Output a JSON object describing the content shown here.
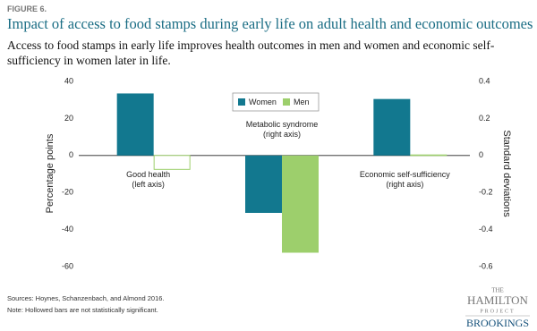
{
  "figure_label": "FIGURE 6.",
  "chart_data": {
    "type": "bar",
    "title": "Impact of access to food stamps during early life on adult health and economic outcomes",
    "subtitle": "Access to food stamps in early life improves health outcomes in men and women and economic self-sufficiency in women later in life.",
    "categories": [
      "Good health",
      "Metabolic syndrome",
      "Economic self-sufficiency"
    ],
    "category_notes": [
      "(left axis)",
      "(right axis)",
      "(right axis)"
    ],
    "category_axes": [
      "y",
      "y2",
      "y2"
    ],
    "series": [
      {
        "name": "Women",
        "color": "#12788f",
        "values": [
          33.5,
          -0.31,
          0.305
        ],
        "hollow": [
          false,
          false,
          false
        ]
      },
      {
        "name": "Men",
        "color": "#9dcf6c",
        "values": [
          -7.5,
          -0.525,
          0.003
        ],
        "hollow": [
          true,
          false,
          true
        ]
      }
    ],
    "ylabel": "Percentage points",
    "y2label": "Standard deviations",
    "ylim": [
      -60,
      40
    ],
    "yticks": [
      -60,
      -40,
      -20,
      0,
      20,
      40
    ],
    "y2lim": [
      -0.6,
      0.4
    ],
    "y2ticks": [
      -0.6,
      -0.4,
      -0.2,
      0,
      0.2,
      0.4
    ]
  },
  "footer": {
    "source": "Sources: Hoynes, Schanzenbach, and Almond 2016.",
    "note": "Note: Hollowed bars are not statistically significant."
  },
  "logo": {
    "the": "THE",
    "hamilton": "HAMILTON",
    "project": "PROJECT",
    "brookings": "BROOKINGS"
  }
}
